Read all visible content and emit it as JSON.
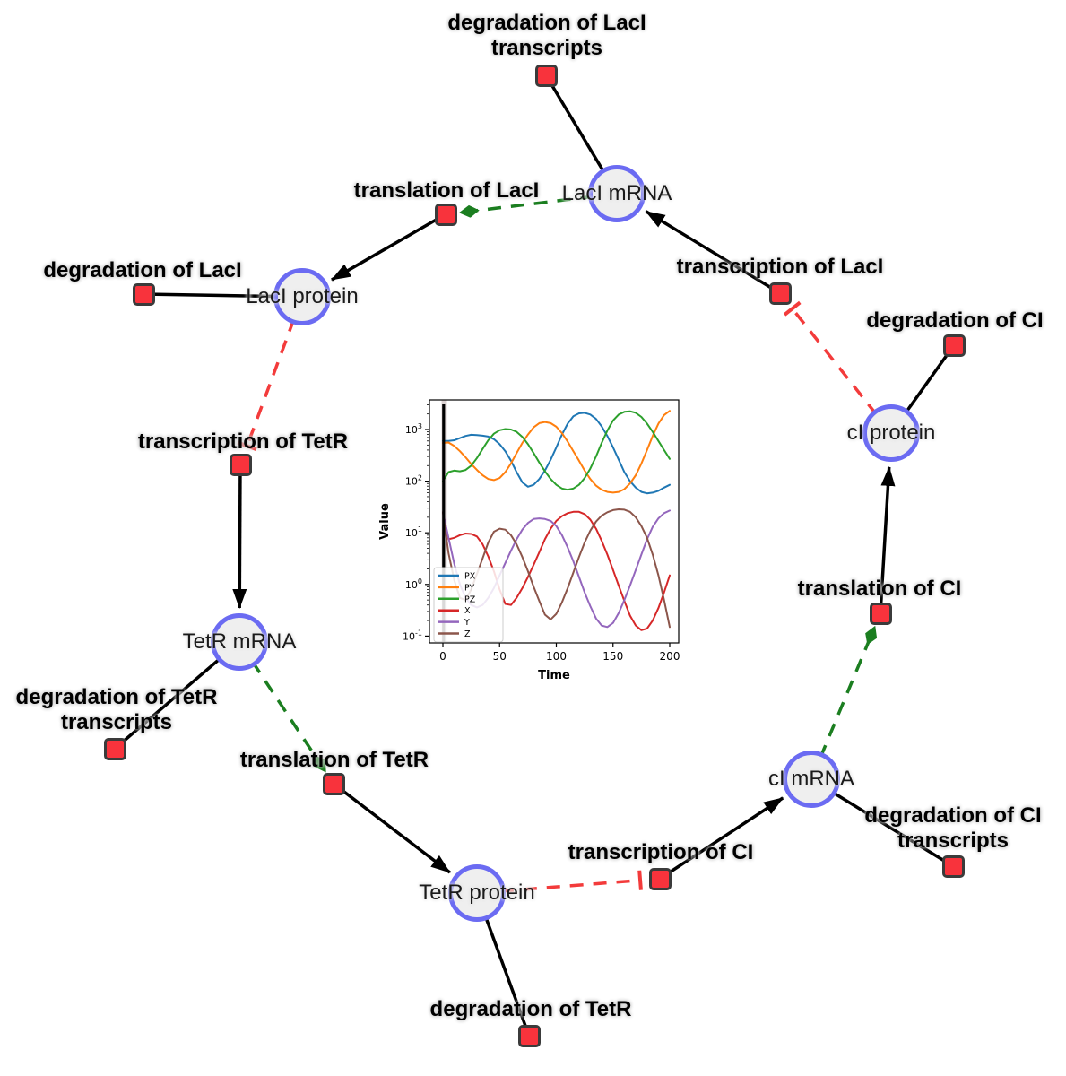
{
  "diagram": {
    "species_nodes": [
      {
        "id": "laci-mrna",
        "label": "LacI mRNA"
      },
      {
        "id": "laci-protein",
        "label": "LacI protein"
      },
      {
        "id": "tetr-mrna",
        "label": "TetR mRNA"
      },
      {
        "id": "tetr-protein",
        "label": "TetR protein"
      },
      {
        "id": "ci-mrna",
        "label": "cI mRNA"
      },
      {
        "id": "ci-protein",
        "label": "cI protein"
      }
    ],
    "reaction_nodes": [
      {
        "id": "deg-laci-transcripts",
        "lines": [
          "degradation of LacI",
          "transcripts"
        ]
      },
      {
        "id": "trans-laci",
        "lines": [
          "translation of LacI"
        ]
      },
      {
        "id": "txn-laci",
        "lines": [
          "transcription of LacI"
        ]
      },
      {
        "id": "deg-laci",
        "lines": [
          "degradation of LacI"
        ]
      },
      {
        "id": "txn-tetr",
        "lines": [
          "transcription of TetR"
        ]
      },
      {
        "id": "deg-ci",
        "lines": [
          "degradation of CI"
        ]
      },
      {
        "id": "deg-tetr-transcripts",
        "lines": [
          "degradation of TetR",
          "transcripts"
        ]
      },
      {
        "id": "trans-tetr",
        "lines": [
          "translation of TetR"
        ]
      },
      {
        "id": "txn-ci",
        "lines": [
          "transcription of CI"
        ]
      },
      {
        "id": "deg-tetr",
        "lines": [
          "degradation of TetR"
        ]
      },
      {
        "id": "deg-ci-transcripts",
        "lines": [
          "degradation of CI",
          "transcripts"
        ]
      },
      {
        "id": "trans-ci",
        "lines": [
          "translation of CI"
        ]
      }
    ],
    "edges": [
      {
        "from": "laci-mrna",
        "to": "deg-laci-transcripts",
        "type": "consumption"
      },
      {
        "from": "trans-laci",
        "to": "laci-protein",
        "type": "production"
      },
      {
        "from": "txn-laci",
        "to": "laci-mrna",
        "type": "production"
      },
      {
        "from": "laci-mrna",
        "to": "trans-laci",
        "type": "catalysis"
      },
      {
        "from": "laci-protein",
        "to": "deg-laci",
        "type": "consumption"
      },
      {
        "from": "laci-protein",
        "to": "txn-tetr",
        "type": "inhibition"
      },
      {
        "from": "txn-tetr",
        "to": "tetr-mrna",
        "type": "production"
      },
      {
        "from": "tetr-mrna",
        "to": "deg-tetr-transcripts",
        "type": "consumption"
      },
      {
        "from": "tetr-mrna",
        "to": "trans-tetr",
        "type": "catalysis"
      },
      {
        "from": "trans-tetr",
        "to": "tetr-protein",
        "type": "production"
      },
      {
        "from": "tetr-protein",
        "to": "deg-tetr",
        "type": "consumption"
      },
      {
        "from": "tetr-protein",
        "to": "txn-ci",
        "type": "inhibition"
      },
      {
        "from": "txn-ci",
        "to": "ci-mrna",
        "type": "production"
      },
      {
        "from": "ci-mrna",
        "to": "deg-ci-transcripts",
        "type": "consumption"
      },
      {
        "from": "ci-mrna",
        "to": "trans-ci",
        "type": "catalysis"
      },
      {
        "from": "trans-ci",
        "to": "ci-protein",
        "type": "production"
      },
      {
        "from": "ci-protein",
        "to": "deg-ci",
        "type": "consumption"
      },
      {
        "from": "ci-protein",
        "to": "txn-laci",
        "type": "inhibition"
      }
    ],
    "colors": {
      "species_fill": "#efefef",
      "species_stroke": "#6b6bf2",
      "reaction_fill": "#f8333c",
      "reaction_stroke": "#3b3b3b",
      "consumption": "#000000",
      "production": "#000000",
      "catalysis": "#1b7e20",
      "inhibition": "#f33b3b"
    }
  },
  "chart_data": {
    "type": "line",
    "title": "",
    "xlabel": "Time",
    "ylabel": "Value",
    "yscale": "log",
    "xticks": [
      0,
      50,
      100,
      150,
      200
    ],
    "ytick_exponents": [
      3,
      2,
      1,
      0,
      -1
    ],
    "xlim": [
      -10,
      210
    ],
    "ylim_log10": [
      -1.13,
      3.57
    ],
    "legend_position": "lower left",
    "initial_marker_line_x": 0,
    "x": [
      0,
      5,
      10,
      15,
      20,
      25,
      30,
      35,
      40,
      45,
      50,
      55,
      60,
      65,
      70,
      75,
      80,
      85,
      90,
      95,
      100,
      105,
      110,
      115,
      120,
      125,
      130,
      135,
      140,
      145,
      150,
      155,
      160,
      165,
      170,
      175,
      180,
      185,
      190,
      195,
      200
    ],
    "series": [
      {
        "name": "PX",
        "color": "#1f77b4",
        "values": [
          600,
          600,
          620,
          680,
          750,
          790,
          780,
          760,
          730,
          650,
          520,
          380,
          250,
          150,
          95,
          78,
          85,
          110,
          160,
          260,
          450,
          800,
          1300,
          1800,
          2050,
          2100,
          1950,
          1600,
          1150,
          750,
          450,
          260,
          150,
          100,
          75,
          62,
          58,
          60,
          65,
          75,
          85
        ]
      },
      {
        "name": "PY",
        "color": "#ff7f0e",
        "values": [
          550,
          560,
          480,
          380,
          290,
          215,
          165,
          130,
          110,
          105,
          115,
          150,
          220,
          350,
          550,
          800,
          1100,
          1330,
          1400,
          1330,
          1130,
          850,
          580,
          380,
          250,
          160,
          110,
          82,
          68,
          62,
          60,
          62,
          70,
          90,
          130,
          220,
          400,
          750,
          1300,
          1900,
          2300
        ]
      },
      {
        "name": "PZ",
        "color": "#2ca02c",
        "values": [
          100,
          150,
          160,
          155,
          165,
          200,
          280,
          420,
          620,
          830,
          970,
          1020,
          1000,
          900,
          720,
          520,
          350,
          230,
          155,
          110,
          85,
          72,
          68,
          72,
          85,
          115,
          175,
          300,
          550,
          950,
          1500,
          1950,
          2200,
          2250,
          2100,
          1750,
          1300,
          900,
          600,
          400,
          270
        ]
      },
      {
        "name": "X",
        "color": "#d62728",
        "values": [
          25,
          7.5,
          8,
          9,
          9.7,
          9.5,
          8.5,
          6,
          3.5,
          1.8,
          0.8,
          0.42,
          0.4,
          0.55,
          0.85,
          1.4,
          2.4,
          4.2,
          7.5,
          12,
          17,
          21,
          24,
          25.5,
          25.5,
          23,
          18,
          12,
          7,
          3.8,
          1.9,
          0.95,
          0.48,
          0.25,
          0.16,
          0.13,
          0.14,
          0.2,
          0.35,
          0.7,
          1.5
        ]
      },
      {
        "name": "Y",
        "color": "#9467bd",
        "values": [
          25,
          8,
          2.5,
          1.0,
          0.55,
          0.4,
          0.36,
          0.4,
          0.55,
          0.85,
          1.5,
          2.6,
          4.5,
          7.5,
          11.5,
          15.5,
          18.5,
          19,
          18.5,
          17,
          13.5,
          9,
          5.2,
          2.8,
          1.4,
          0.7,
          0.38,
          0.22,
          0.16,
          0.15,
          0.18,
          0.28,
          0.5,
          0.95,
          1.9,
          3.8,
          7.5,
          13,
          19,
          24,
          27
        ]
      },
      {
        "name": "Z",
        "color": "#8c564b",
        "values": [
          25,
          4,
          1.2,
          0.55,
          0.5,
          0.8,
          1.6,
          3.2,
          6.5,
          10.5,
          12,
          11.5,
          9,
          6,
          3.4,
          1.8,
          0.9,
          0.48,
          0.26,
          0.21,
          0.27,
          0.45,
          0.85,
          1.7,
          3.4,
          6.5,
          11,
          16.5,
          21.5,
          25,
          27.5,
          28.5,
          28,
          25.5,
          20,
          13.5,
          8,
          3.8,
          1.5,
          0.5,
          0.15
        ]
      }
    ]
  }
}
